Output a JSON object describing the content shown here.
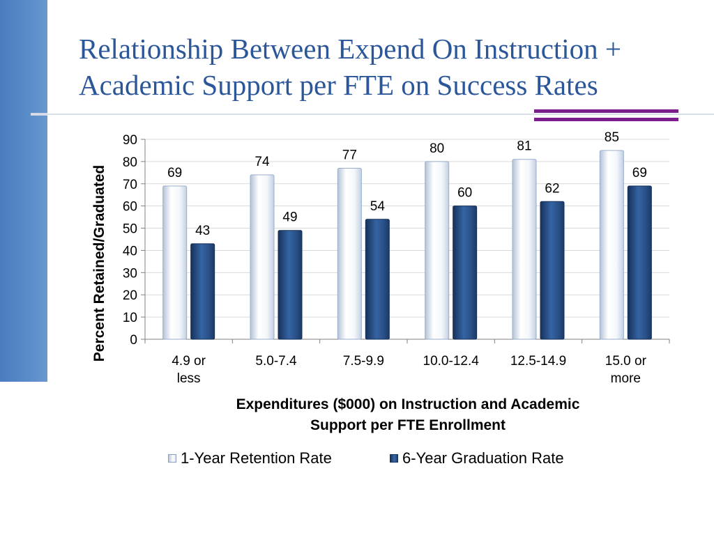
{
  "slide": {
    "title_line1": "Relationship Between Expend On Instruction +",
    "title_line2": "Academic Support per FTE on Success Rates"
  },
  "colors": {
    "title": "#2b579a",
    "left_bar": "#4f81bd",
    "accent": "#7a1e8c",
    "series_retention": "#e8eef7",
    "series_graduation": "#2a5189"
  },
  "chart_data": {
    "type": "bar",
    "categories": [
      "4.9 or less",
      "5.0-7.4",
      "7.5-9.9",
      "10.0-12.4",
      "12.5-14.9",
      "15.0 or more"
    ],
    "series": [
      {
        "name": "1-Year Retention Rate",
        "values": [
          69,
          74,
          77,
          80,
          81,
          85
        ]
      },
      {
        "name": "6-Year Graduation Rate",
        "values": [
          43,
          49,
          54,
          60,
          62,
          69
        ]
      }
    ],
    "xlabel_line1": "Expenditures ($000) on Instruction and Academic",
    "xlabel_line2": "Support per FTE Enrollment",
    "ylabel": "Percent Retained/Graduated",
    "ylim": [
      0,
      90
    ],
    "yticks": [
      0,
      10,
      20,
      30,
      40,
      50,
      60,
      70,
      80,
      90
    ],
    "grid": true,
    "legend": "bottom"
  }
}
